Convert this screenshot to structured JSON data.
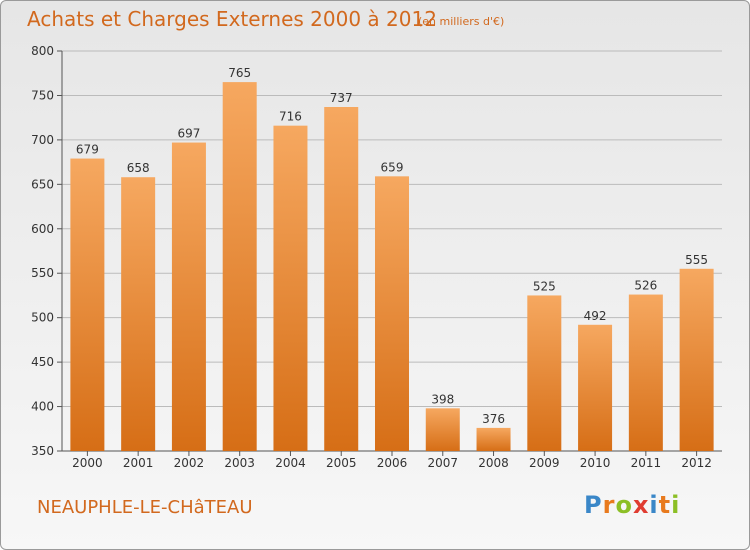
{
  "header": {
    "title": "Achats et Charges Externes 2000 à 2012",
    "subtitle": "(en milliers d'€)"
  },
  "footer": {
    "commune": "NEAUPHLE-LE-CHâTEAU",
    "logo_text": "Proxiti",
    "logo_letters": [
      {
        "ch": "P",
        "color": "#3a87c8"
      },
      {
        "ch": "r",
        "color": "#e87a1e"
      },
      {
        "ch": "o",
        "color": "#8cbf26"
      },
      {
        "ch": "x",
        "color": "#e03c31"
      },
      {
        "ch": "i",
        "color": "#3a87c8"
      },
      {
        "ch": "t",
        "color": "#e87a1e"
      },
      {
        "ch": "i",
        "color": "#8cbf26"
      }
    ]
  },
  "chart_data": {
    "type": "bar",
    "categories": [
      "2000",
      "2001",
      "2002",
      "2003",
      "2004",
      "2005",
      "2006",
      "2007",
      "2008",
      "2009",
      "2010",
      "2011",
      "2012"
    ],
    "values": [
      679,
      658,
      697,
      765,
      716,
      737,
      659,
      398,
      376,
      525,
      492,
      526,
      555
    ],
    "xlabel": "",
    "ylabel": "",
    "ylim": [
      350,
      800
    ],
    "yticks": [
      350,
      400,
      450,
      500,
      550,
      600,
      650,
      700,
      750,
      800
    ],
    "grid": true,
    "bar_color_top": "#f6a860",
    "bar_color_bottom": "#d66e16",
    "label_color": "#333333",
    "grid_color": "#bbbbbb"
  }
}
